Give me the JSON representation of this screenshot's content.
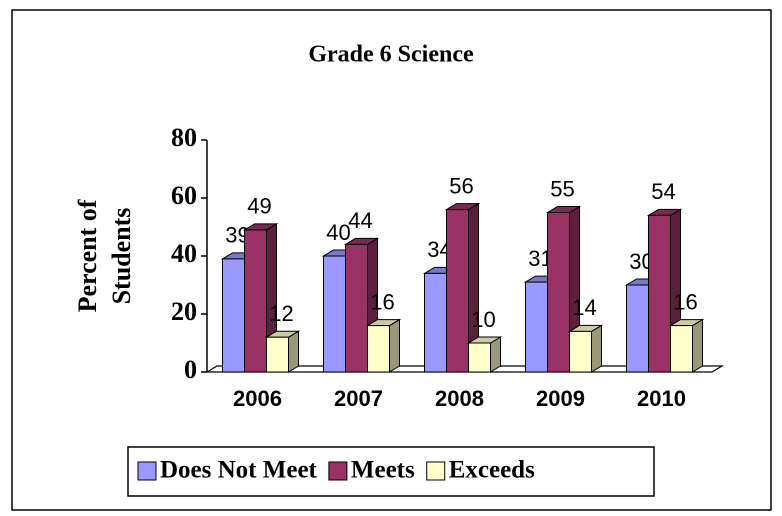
{
  "chart_data": {
    "type": "bar",
    "title": "Grade 6 Science",
    "y_label": [
      "Percent of",
      "Students"
    ],
    "categories": [
      "2006",
      "2007",
      "2008",
      "2009",
      "2010"
    ],
    "series": [
      {
        "name": "Does Not Meet",
        "color": "#9999ff",
        "values": [
          39,
          40,
          34,
          31,
          30
        ]
      },
      {
        "name": "Meets",
        "color": "#993366",
        "values": [
          49,
          44,
          56,
          55,
          54
        ]
      },
      {
        "name": "Exceeds",
        "color": "#ffffcc",
        "values": [
          12,
          16,
          10,
          14,
          16
        ]
      }
    ],
    "ylim": [
      0,
      80
    ],
    "yticks": [
      0,
      20,
      40,
      60,
      80
    ],
    "legend": "bottom"
  }
}
